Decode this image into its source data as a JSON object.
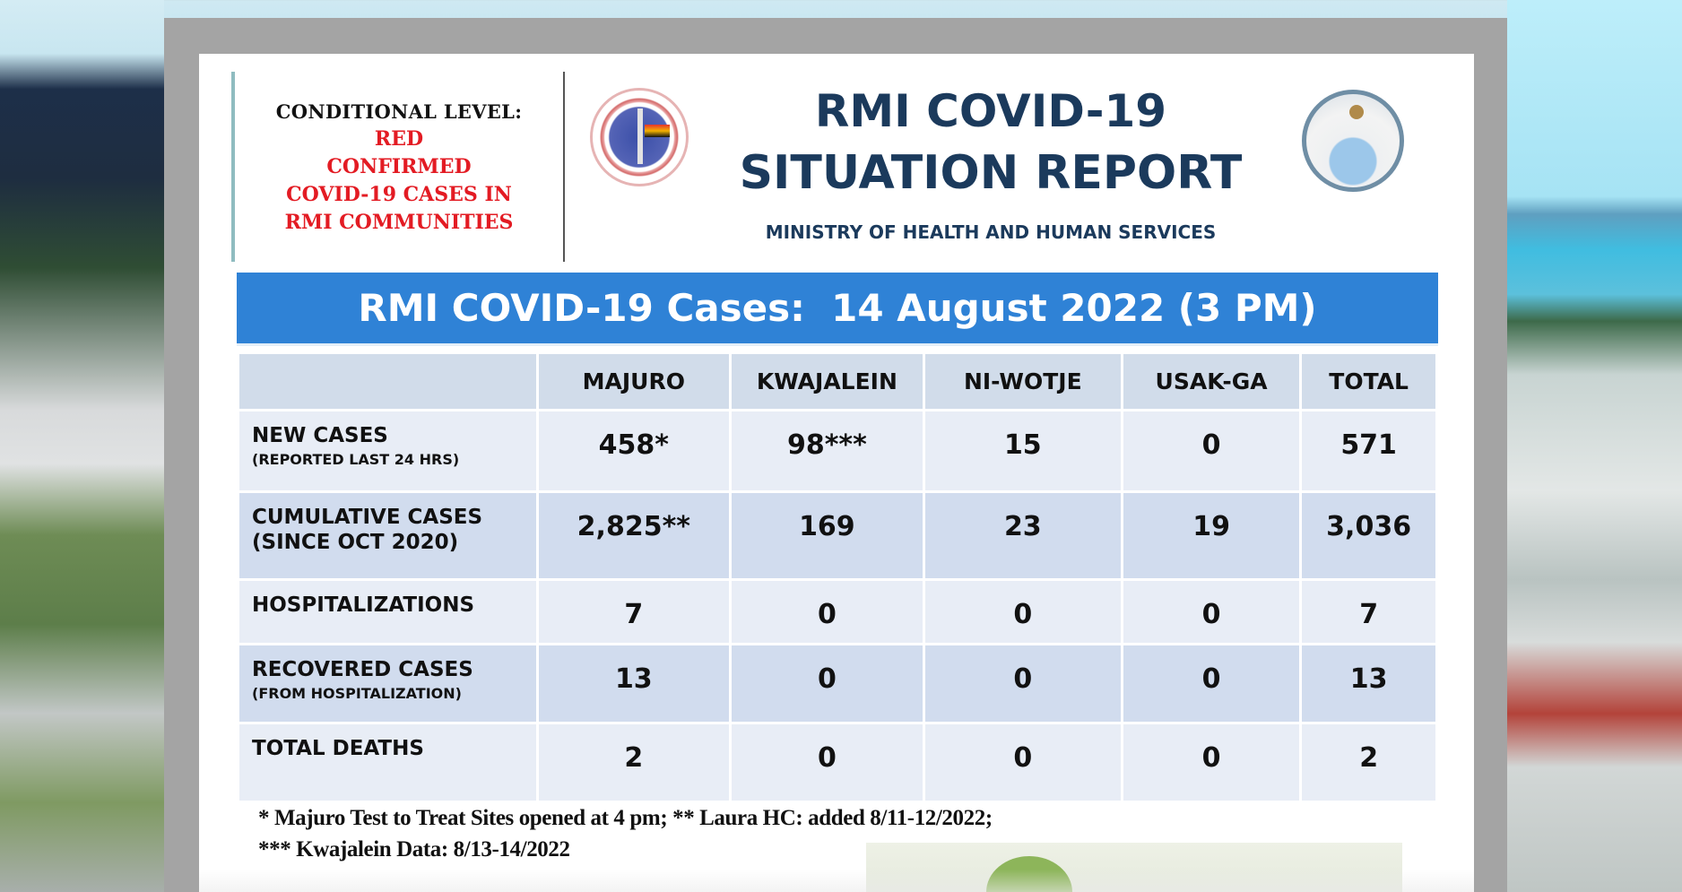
{
  "slide": {
    "conditional_level": {
      "title": "CONDITIONAL LEVEL:",
      "level": "RED",
      "lines": [
        "CONFIRMED",
        "COVID-19 CASES IN",
        "RMI COMMUNITIES"
      ],
      "color": "#e31b23"
    },
    "logos": {
      "left": "ministry-of-health-seal",
      "right": "rmi-national-seal"
    },
    "header": {
      "title_line1": "RMI COVID-19",
      "title_line2": "SITUATION REPORT",
      "subtitle": "MINISTRY OF HEALTH AND HUMAN SERVICES",
      "color": "#1b3a5c"
    },
    "banner": {
      "text": "RMI COVID-19 Cases:  14 August 2022 (3 PM)",
      "color": "#2f82d6"
    },
    "table": {
      "columns": [
        "",
        "MAJURO",
        "KWAJALEIN",
        "NI-WOTJE",
        "USAK-GA",
        "TOTAL"
      ],
      "rows": [
        {
          "label": "NEW CASES",
          "sublabel": "(REPORTED LAST 24 HRS)",
          "values": [
            "458*",
            "98***",
            "15",
            "0",
            "571"
          ]
        },
        {
          "label": "CUMULATIVE CASES",
          "sublabel": "(SINCE OCT 2020)",
          "values": [
            "2,825**",
            "169",
            "23",
            "19",
            "3,036"
          ]
        },
        {
          "label": "HOSPITALIZATIONS",
          "sublabel": "",
          "values": [
            "7",
            "0",
            "0",
            "0",
            "7"
          ]
        },
        {
          "label": "RECOVERED CASES",
          "sublabel": "(FROM HOSPITALIZATION)",
          "values": [
            "13",
            "0",
            "0",
            "0",
            "13"
          ]
        },
        {
          "label": "TOTAL DEATHS",
          "sublabel": "",
          "values": [
            "2",
            "0",
            "0",
            "0",
            "2"
          ]
        }
      ]
    },
    "footnotes": [
      "* Majuro Test to Treat Sites opened at 4 pm; ** Laura HC: added 8/11-12/2022;",
      "***  Kwajalein Data: 8/13-14/2022"
    ]
  }
}
